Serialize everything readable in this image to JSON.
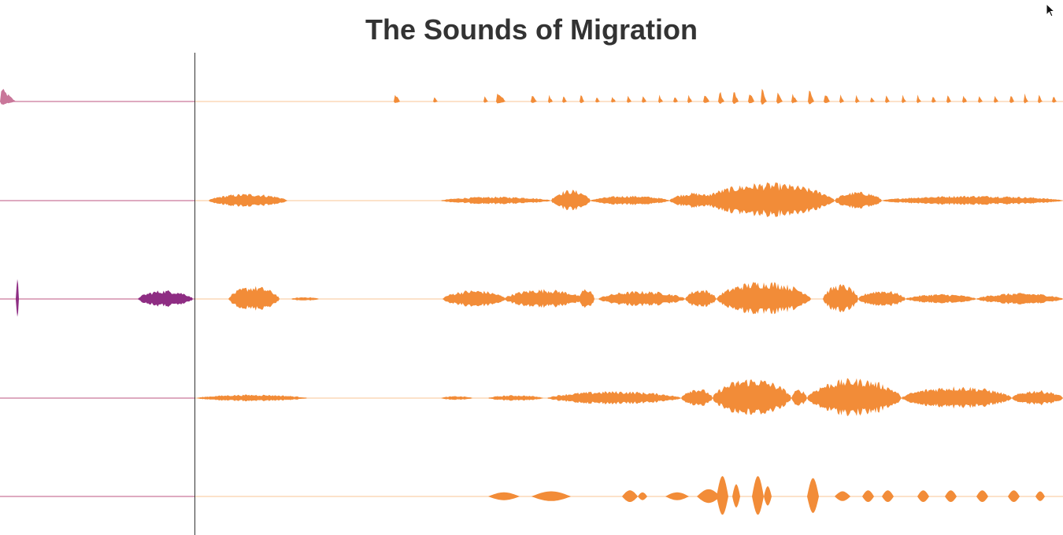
{
  "header": {
    "title": "The Sounds of Migration"
  },
  "colors": {
    "played_waveform": "#8e2d83",
    "unplayed_waveform": "#f28c38",
    "played_baseline": "#c9779a",
    "unplayed_baseline": "#fbd9b9",
    "playhead": "#333333",
    "title_text": "#333333"
  },
  "playback": {
    "progress_fraction": 0.183
  },
  "icons": {
    "cursor": "arrow-pointer-icon"
  },
  "tracks": [
    {
      "id": "track-1",
      "style": "clicks",
      "bursts": [
        [
          0.0,
          0.02,
          0.8
        ],
        [
          0.5,
          0.008,
          0.6
        ],
        [
          0.55,
          0.006,
          0.35
        ],
        [
          0.614,
          0.006,
          0.35
        ],
        [
          0.63,
          0.012,
          0.7
        ],
        [
          0.674,
          0.008,
          0.45
        ],
        [
          0.696,
          0.006,
          0.5
        ],
        [
          0.714,
          0.006,
          0.45
        ],
        [
          0.736,
          0.006,
          0.55
        ],
        [
          0.756,
          0.006,
          0.4
        ],
        [
          0.776,
          0.006,
          0.4
        ],
        [
          0.796,
          0.006,
          0.4
        ],
        [
          0.815,
          0.006,
          0.45
        ],
        [
          0.836,
          0.006,
          0.45
        ],
        [
          0.855,
          0.006,
          0.45
        ],
        [
          0.873,
          0.006,
          0.5
        ],
        [
          0.893,
          0.008,
          0.55
        ],
        [
          0.912,
          0.008,
          0.8
        ],
        [
          0.93,
          0.008,
          0.8
        ],
        [
          0.95,
          0.008,
          0.75
        ],
        [
          0.966,
          0.008,
          0.95
        ],
        [
          0.986,
          0.008,
          0.65
        ],
        [
          1.005,
          0.008,
          0.55
        ],
        [
          1.026,
          0.008,
          0.95
        ],
        [
          1.046,
          0.008,
          0.6
        ],
        [
          1.066,
          0.006,
          0.5
        ],
        [
          1.086,
          0.006,
          0.45
        ],
        [
          1.105,
          0.006,
          0.45
        ],
        [
          1.124,
          0.006,
          0.45
        ],
        [
          1.145,
          0.006,
          0.45
        ],
        [
          1.164,
          0.006,
          0.45
        ],
        [
          1.183,
          0.006,
          0.45
        ],
        [
          1.202,
          0.006,
          0.5
        ],
        [
          1.222,
          0.006,
          0.55
        ],
        [
          1.242,
          0.006,
          0.45
        ],
        [
          1.262,
          0.006,
          0.45
        ],
        [
          1.282,
          0.006,
          0.5
        ],
        [
          1.3,
          0.006,
          0.55
        ],
        [
          1.318,
          0.006,
          0.45
        ],
        [
          1.336,
          0.006,
          0.45
        ]
      ]
    },
    {
      "id": "track-2",
      "style": "noise",
      "bursts": [
        [
          0.265,
          0.1,
          0.35
        ],
        [
          0.56,
          0.14,
          0.2
        ],
        [
          0.7,
          0.05,
          0.55
        ],
        [
          0.75,
          0.1,
          0.25
        ],
        [
          0.85,
          0.06,
          0.4
        ],
        [
          0.89,
          0.17,
          0.9
        ],
        [
          1.06,
          0.06,
          0.45
        ],
        [
          1.12,
          0.23,
          0.25
        ]
      ]
    },
    {
      "id": "track-3",
      "style": "noise",
      "bursts": [
        [
          0.02,
          0.004,
          1.0
        ],
        [
          0.175,
          0.07,
          0.45
        ],
        [
          0.29,
          0.065,
          0.65
        ],
        [
          0.37,
          0.035,
          0.1
        ],
        [
          0.562,
          0.08,
          0.45
        ],
        [
          0.64,
          0.1,
          0.5
        ],
        [
          0.735,
          0.02,
          0.55
        ],
        [
          0.76,
          0.11,
          0.4
        ],
        [
          0.87,
          0.04,
          0.5
        ],
        [
          0.91,
          0.12,
          0.9
        ],
        [
          1.045,
          0.045,
          0.75
        ],
        [
          1.09,
          0.06,
          0.45
        ],
        [
          1.15,
          0.09,
          0.25
        ],
        [
          1.24,
          0.11,
          0.3
        ]
      ]
    },
    {
      "id": "track-4",
      "style": "noise",
      "bursts": [
        [
          0.25,
          0.14,
          0.18
        ],
        [
          0.56,
          0.04,
          0.1
        ],
        [
          0.62,
          0.07,
          0.15
        ],
        [
          0.695,
          0.17,
          0.35
        ],
        [
          0.865,
          0.04,
          0.5
        ],
        [
          0.905,
          0.1,
          1.0
        ],
        [
          1.005,
          0.02,
          0.45
        ],
        [
          1.025,
          0.12,
          1.0
        ],
        [
          1.145,
          0.14,
          0.6
        ],
        [
          1.285,
          0.065,
          0.4
        ]
      ]
    },
    {
      "id": "track-5",
      "style": "blobs",
      "bursts": [
        [
          0.62,
          0.04,
          0.2
        ],
        [
          0.675,
          0.05,
          0.25
        ],
        [
          0.79,
          0.02,
          0.3
        ],
        [
          0.81,
          0.012,
          0.2
        ],
        [
          0.845,
          0.03,
          0.2
        ],
        [
          0.885,
          0.03,
          0.35
        ],
        [
          0.91,
          0.015,
          1.0
        ],
        [
          0.93,
          0.01,
          0.6
        ],
        [
          0.955,
          0.015,
          1.0
        ],
        [
          0.97,
          0.01,
          0.5
        ],
        [
          1.025,
          0.015,
          0.9
        ],
        [
          1.06,
          0.02,
          0.25
        ],
        [
          1.095,
          0.015,
          0.3
        ],
        [
          1.12,
          0.015,
          0.3
        ],
        [
          1.165,
          0.015,
          0.3
        ],
        [
          1.2,
          0.015,
          0.3
        ],
        [
          1.24,
          0.015,
          0.3
        ],
        [
          1.28,
          0.015,
          0.3
        ],
        [
          1.315,
          0.012,
          0.25
        ]
      ]
    }
  ]
}
